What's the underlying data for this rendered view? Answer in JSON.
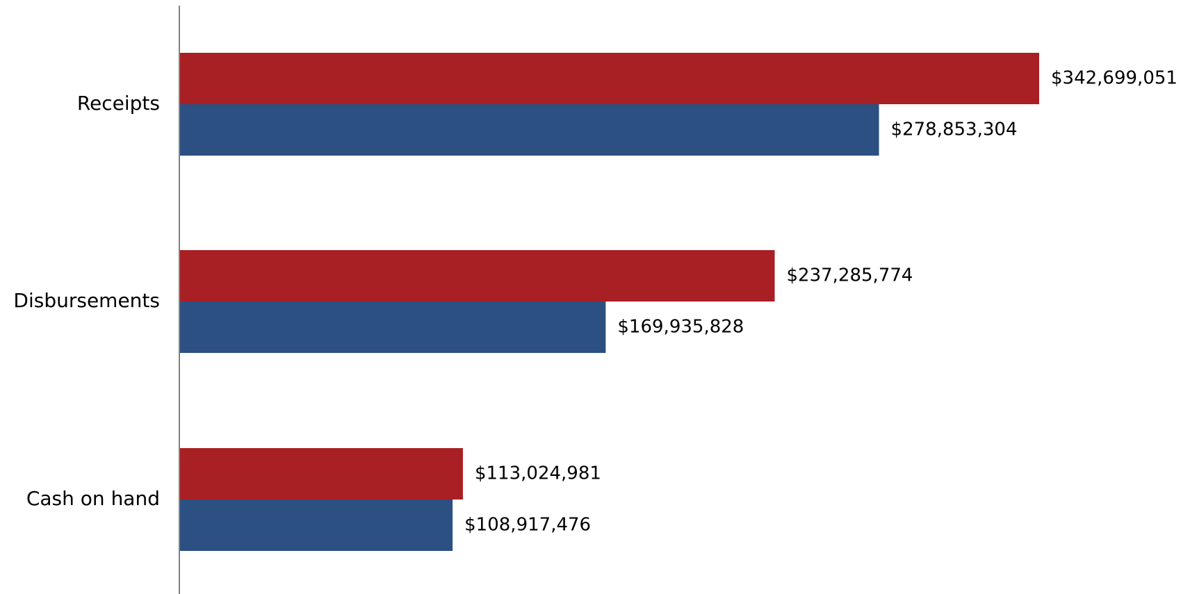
{
  "chart_data": {
    "type": "bar",
    "orientation": "horizontal",
    "categories": [
      "Receipts",
      "Disbursements",
      "Cash on hand"
    ],
    "series": [
      {
        "color": "#A82024",
        "values": [
          342699051,
          237285774,
          113024981
        ],
        "value_labels": [
          "$342,699,051",
          "$237,285,774",
          "$113,024,981"
        ]
      },
      {
        "color": "#2B5081",
        "values": [
          278853304,
          169935828,
          108917476
        ],
        "value_labels": [
          "$278,853,304",
          "$169,935,828",
          "$108,917,476"
        ]
      }
    ],
    "title": "",
    "xlabel": "",
    "ylabel": "",
    "xlim": [
      0,
      342699051
    ],
    "grid": false,
    "legend": "none",
    "colors": {
      "axis": "#808080"
    }
  }
}
